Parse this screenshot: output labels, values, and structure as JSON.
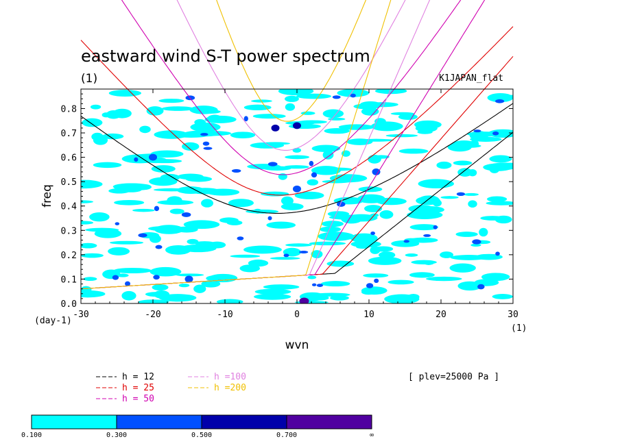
{
  "chart_data": {
    "type": "heatmap",
    "title": "eastward wind S-T power spectrum",
    "panel_label": "(1)",
    "dataset_label": "K1JAPAN_flat",
    "xlabel": "wvn",
    "ylabel": "freq",
    "x_unit": "(1)",
    "y_unit": "(day-1)",
    "xlim": [
      -30,
      30
    ],
    "ylim": [
      0,
      0.88
    ],
    "xticks": [
      -30,
      -20,
      -10,
      0,
      10,
      20,
      30
    ],
    "yticks": [
      0.0,
      0.1,
      0.2,
      0.3,
      0.4,
      0.5,
      0.6,
      0.7,
      0.8
    ],
    "xtick_labels": [
      "-30",
      "-20",
      "-10",
      "0",
      "10",
      "20",
      "30"
    ],
    "ytick_labels": [
      "0.0",
      "0.1",
      "0.2",
      "0.3",
      "0.4",
      "0.5",
      "0.6",
      "0.7",
      "0.8"
    ],
    "annotation": "[ plev=25000 Pa ]",
    "colorbar": {
      "levels": [
        "0.100",
        "0.300",
        "0.500",
        "0.700",
        "∞"
      ],
      "colors": [
        "#00ffff",
        "#0050ff",
        "#0000aa",
        "#5000a0"
      ]
    },
    "dispersion_curves": [
      {
        "name": "h = 12",
        "color": "#000000",
        "h": 12
      },
      {
        "name": "h = 25",
        "color": "#e00000",
        "h": 25
      },
      {
        "name": "h = 50",
        "color": "#d000b0",
        "h": 50
      },
      {
        "name": "h =100",
        "color": "#e080e0",
        "h": 100
      },
      {
        "name": "h =200",
        "color": "#f0c000",
        "h": 200
      }
    ],
    "curve_types": [
      "kelvin",
      "inertia-gravity n=1"
    ],
    "contour_peaks": [
      {
        "x": 1,
        "y": 0.01,
        "level": 0.7
      },
      {
        "x": 0,
        "y": 0.73,
        "level": 0.5
      },
      {
        "x": -3,
        "y": 0.72,
        "level": 0.5
      },
      {
        "x": 0,
        "y": 0.47,
        "level": 0.3
      },
      {
        "x": 11,
        "y": 0.54,
        "level": 0.3
      },
      {
        "x": -20,
        "y": 0.6,
        "level": 0.3
      },
      {
        "x": -15,
        "y": 0.1,
        "level": 0.3
      }
    ]
  }
}
